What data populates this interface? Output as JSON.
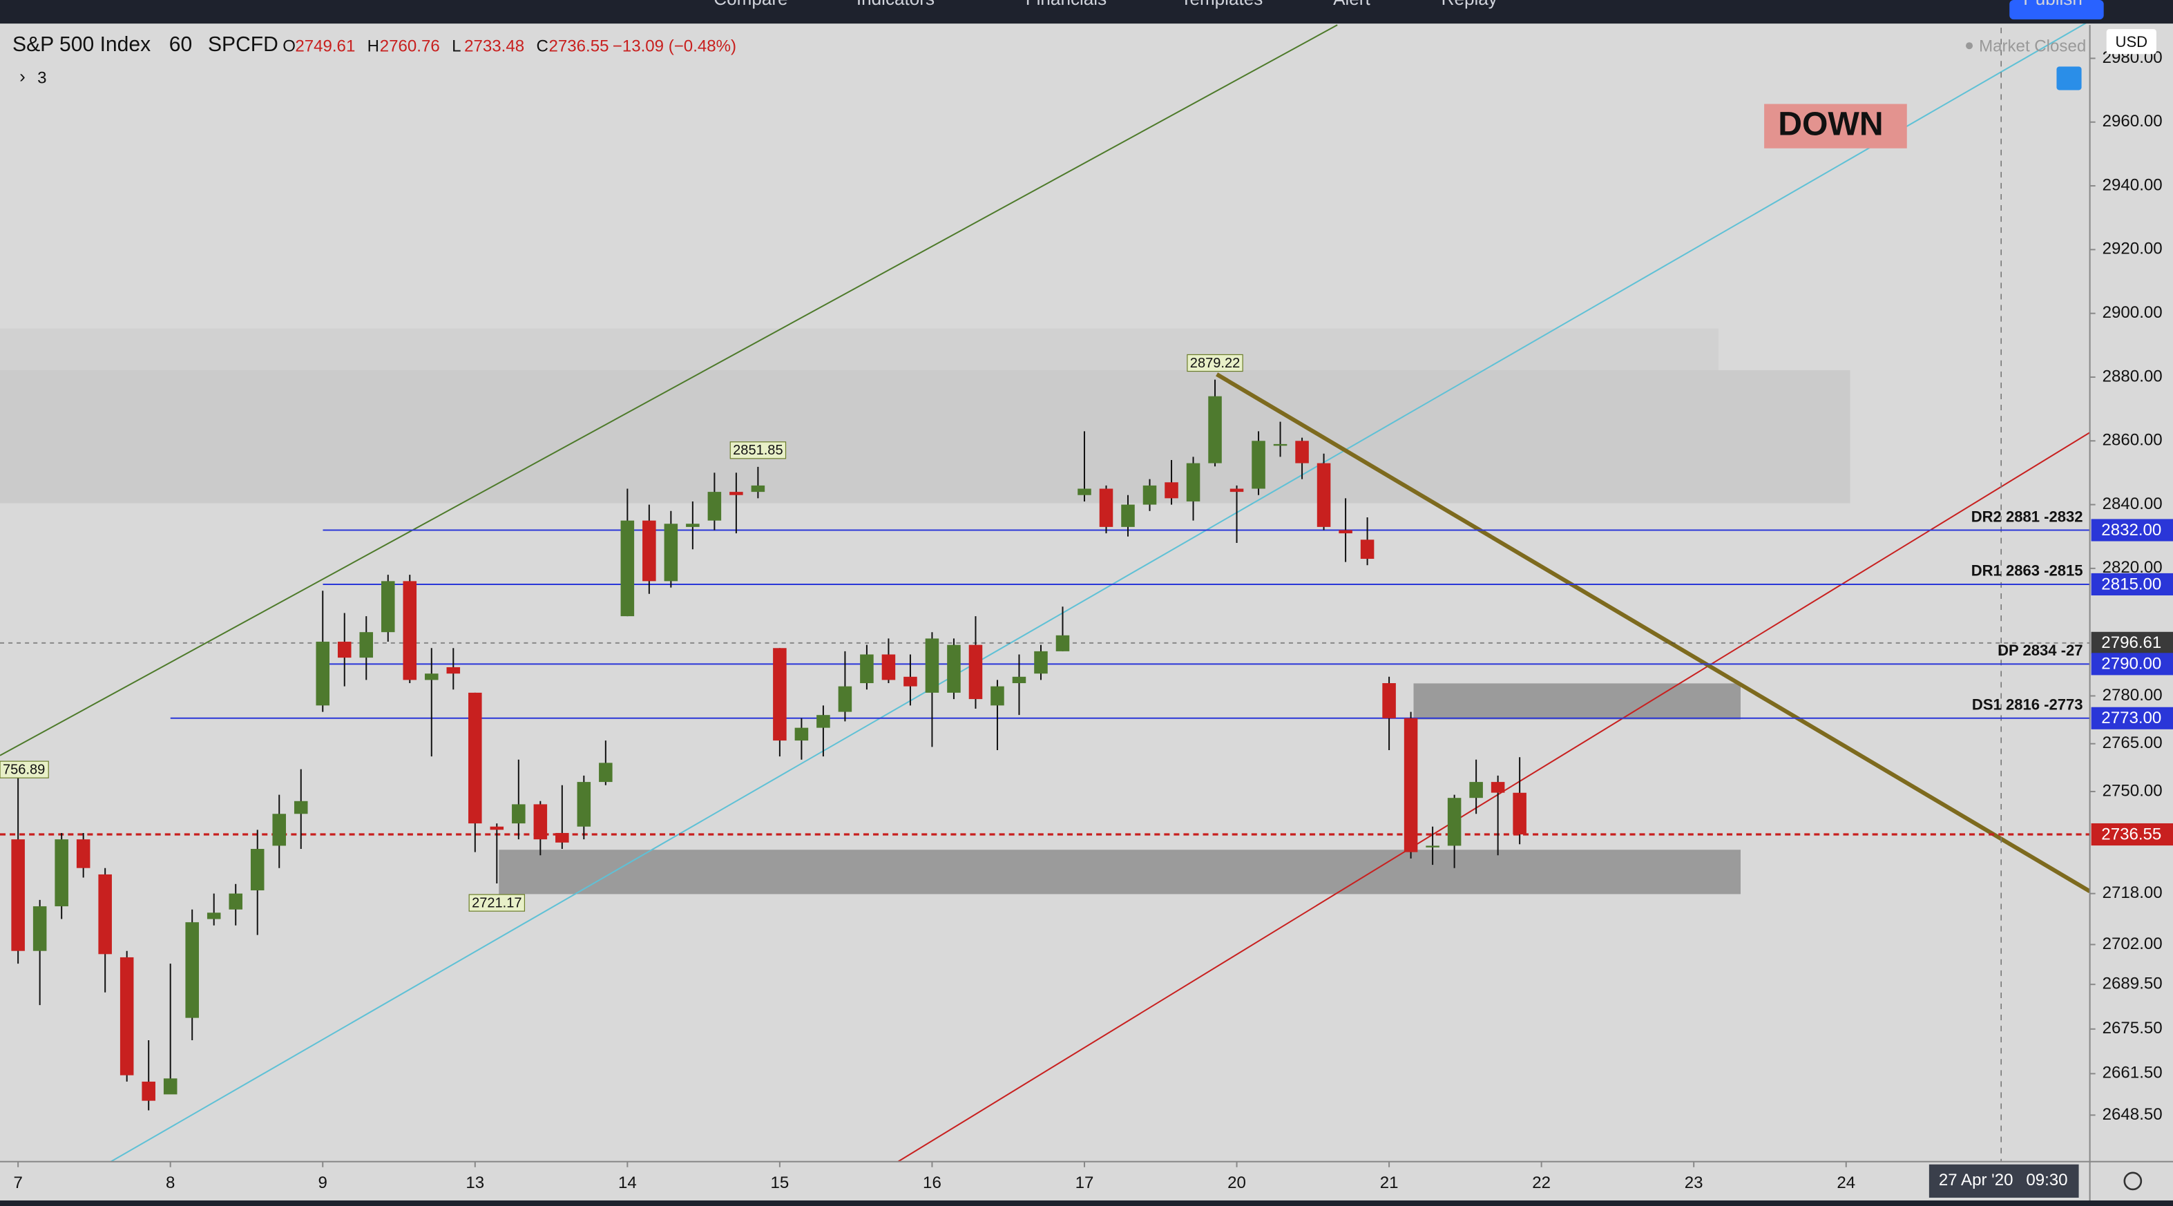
{
  "toolbar": [
    "Compare",
    "Indicators",
    "Financials",
    "Templates",
    "Alert",
    "Replay",
    "Publish"
  ],
  "chart_data": {
    "type": "candlestick",
    "title": "S&P 500 Index",
    "interval": "60",
    "source": "SPCFD",
    "ohlc_letters": [
      "O",
      "H",
      "L",
      "C"
    ],
    "change": "−13.09 (−0.48%)",
    "collapsed_count": "3",
    "status": "Market Closed",
    "currency": "USD",
    "signal": "DOWN",
    "time_label": {
      "date": "27 Apr '20",
      "time": "09:30"
    },
    "colors": {
      "up": "#4e7a2e",
      "down": "#c8201f"
    },
    "open": [
      2735,
      2700,
      2714,
      2735,
      2724,
      2698,
      2659,
      2655,
      2679,
      2710,
      2713,
      2719,
      2733,
      2743,
      2777,
      2797,
      2792,
      2800,
      2816,
      2785,
      2789,
      2781,
      2739,
      2740,
      2746,
      2737,
      2739,
      2753,
      2805,
      2835,
      2816,
      2833,
      2835,
      2844,
      2844,
      2795,
      2766,
      2770,
      2775,
      2784,
      2793,
      2786,
      2781,
      2781,
      2796,
      2777,
      2784,
      2787,
      2794,
      2843,
      2845,
      2833,
      2840,
      2847,
      2841,
      2853,
      2845,
      2845,
      2859,
      2860,
      2853,
      2832,
      2829,
      2784,
      2773,
      2733,
      2733,
      2748,
      2753,
      2749.61
    ],
    "high": [
      2756.89,
      2716,
      2737,
      2737,
      2726,
      2700,
      2672,
      2696,
      2713,
      2718,
      2721,
      2738,
      2749,
      2757,
      2813,
      2806,
      2805,
      2818,
      2818,
      2795,
      2795,
      2781,
      2740,
      2760,
      2747,
      2752,
      2755,
      2766,
      2845,
      2840,
      2838,
      2841,
      2850,
      2850,
      2851.85,
      2795,
      2773,
      2777,
      2794,
      2796,
      2798,
      2793,
      2800,
      2798,
      2805,
      2785,
      2793,
      2796,
      2808,
      2863,
      2846,
      2843,
      2848,
      2854,
      2855,
      2879.22,
      2846,
      2863,
      2866,
      2861,
      2856,
      2842,
      2836,
      2786,
      2775,
      2739,
      2749,
      2760,
      2755,
      2760.76
    ],
    "low": [
      2696,
      2683,
      2710,
      2723,
      2687,
      2659,
      2650,
      2657,
      2672,
      2708,
      2708,
      2705,
      2726,
      2732,
      2775,
      2783,
      2785,
      2797,
      2784,
      2761,
      2782,
      2731,
      2721.17,
      2735,
      2730,
      2732,
      2735,
      2752,
      2805,
      2812,
      2814,
      2826,
      2832,
      2831,
      2842,
      2761,
      2760,
      2761,
      2772,
      2782,
      2784,
      2777,
      2764,
      2779,
      2776,
      2763,
      2774,
      2785,
      2794,
      2841,
      2831,
      2830,
      2838,
      2840,
      2835,
      2852,
      2828,
      2843,
      2855,
      2848,
      2832,
      2822,
      2821,
      2763,
      2729,
      2727,
      2726,
      2743,
      2730,
      2733.48
    ],
    "close": [
      2700,
      2714,
      2735,
      2726,
      2699,
      2661,
      2653,
      2660,
      2709,
      2712,
      2718,
      2732,
      2743,
      2747,
      2797,
      2792,
      2800,
      2816,
      2785,
      2787,
      2787,
      2740,
      2738,
      2746,
      2735,
      2734,
      2753,
      2759,
      2835,
      2816,
      2834,
      2834,
      2844,
      2843,
      2846,
      2766,
      2770,
      2774,
      2783,
      2793,
      2785,
      2783,
      2798,
      2796,
      2779,
      2783,
      2786,
      2794,
      2799,
      2845,
      2833,
      2840,
      2846,
      2842,
      2853,
      2874,
      2844,
      2860,
      2859,
      2853,
      2833,
      2831,
      2823,
      2773,
      2731,
      2733,
      2748,
      2753,
      2749.64,
      2736.55
    ],
    "annotations": [
      {
        "value": 2756.89,
        "label": "756.89"
      }
    ],
    "xlim": [
      -0.83,
      95.2
    ],
    "xticks": [
      {
        "value": 0,
        "label": "7"
      },
      {
        "value": 7,
        "label": "8"
      },
      {
        "value": 14,
        "label": "9"
      },
      {
        "value": 21,
        "label": "13"
      },
      {
        "value": 28,
        "label": "14"
      },
      {
        "value": 35,
        "label": "15"
      },
      {
        "value": 42,
        "label": "16"
      },
      {
        "value": 49,
        "label": "17"
      },
      {
        "value": 56,
        "label": "20"
      },
      {
        "value": 63,
        "label": "21"
      },
      {
        "value": 70,
        "label": "22"
      },
      {
        "value": 77,
        "label": "23"
      },
      {
        "value": 84,
        "label": "24"
      }
    ],
    "ylim": [
      2633.9,
      2989.6
    ],
    "yticks": [
      {
        "value": 2980,
        "label": "2980.00"
      },
      {
        "value": 2960,
        "label": "2960.00"
      },
      {
        "value": 2940,
        "label": "2940.00"
      },
      {
        "value": 2920,
        "label": "2920.00"
      },
      {
        "value": 2900,
        "label": "2900.00"
      },
      {
        "value": 2880,
        "label": "2880.00"
      },
      {
        "value": 2860,
        "label": "2860.00"
      },
      {
        "value": 2840,
        "label": "2840.00"
      },
      {
        "value": 2820,
        "label": "2820.00"
      },
      {
        "value": 2780,
        "label": "2780.00"
      },
      {
        "value": 2765,
        "label": "2765.00"
      },
      {
        "value": 2750,
        "label": "2750.00"
      },
      {
        "value": 2718,
        "label": "2718.00"
      },
      {
        "value": 2702,
        "label": "2702.00"
      },
      {
        "value": 2689.5,
        "label": "2689.50"
      },
      {
        "value": 2675.5,
        "label": "2675.50"
      },
      {
        "value": 2661.5,
        "label": "2661.50"
      },
      {
        "value": 2648.5,
        "label": "2648.50"
      }
    ],
    "levels": [
      {
        "value": 2832,
        "label": "2832.00",
        "text": "DR2 2881 -2832",
        "color": "#2a36d8"
      },
      {
        "value": 2815,
        "label": "2815.00",
        "text": "DR1 2863 -2815",
        "color": "#2a36d8"
      },
      {
        "value": 2796.61,
        "color": "#3a3a3a"
      },
      {
        "value": 2790,
        "label": "2790.00",
        "text": "DP 2834 -27",
        "color": "#2a36d8"
      },
      {
        "value": 2773,
        "label": "2773.00",
        "text": "DS1 2816 -2773",
        "color": "#2a36d8"
      },
      {
        "value": 2736.55,
        "color": "#c8201f"
      }
    ]
  }
}
